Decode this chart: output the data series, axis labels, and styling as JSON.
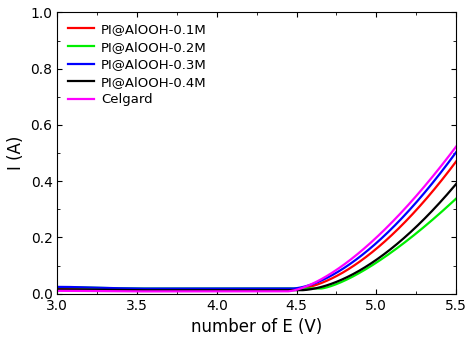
{
  "xlabel": "number of E (V)",
  "ylabel": "I (A)",
  "xlim": [
    3.0,
    5.5
  ],
  "ylim": [
    0.0,
    1.0
  ],
  "xticks": [
    3.0,
    3.5,
    4.0,
    4.5,
    5.0,
    5.5
  ],
  "yticks": [
    0.0,
    0.2,
    0.4,
    0.6,
    0.8,
    1.0
  ],
  "legend": [
    {
      "label": "PI@AlOOH-0.1M",
      "color": "#ff0000"
    },
    {
      "label": "PI@AlOOH-0.2M",
      "color": "#00ee00"
    },
    {
      "label": "PI@AlOOH-0.3M",
      "color": "#0000ff"
    },
    {
      "label": "PI@AlOOH-0.4M",
      "color": "#000000"
    },
    {
      "label": "Celgard",
      "color": "#ff00ff"
    }
  ],
  "linewidth": 1.6,
  "legend_fontsize": 9.5,
  "label_fontsize": 12,
  "tick_fontsize": 10
}
